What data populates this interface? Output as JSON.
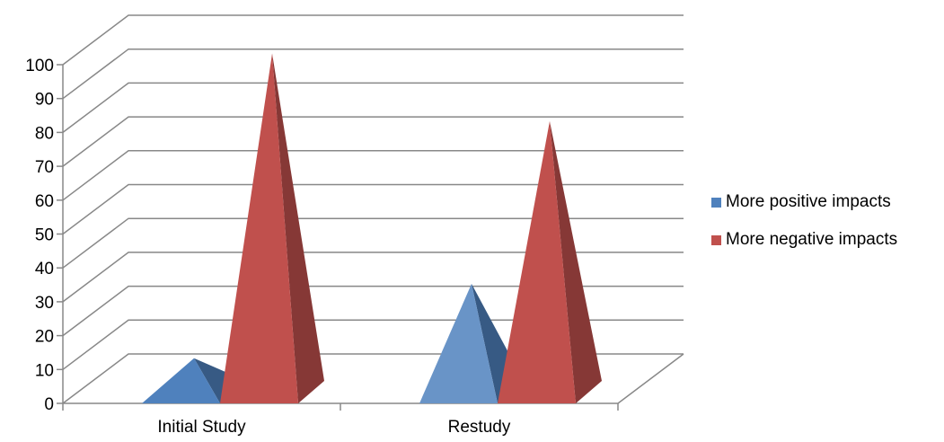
{
  "chart_data": {
    "type": "bar",
    "style": "3d-pyramid",
    "title": "",
    "xlabel": "",
    "ylabel": "",
    "categories": [
      "Initial Study",
      "Restudy"
    ],
    "series": [
      {
        "name": "More positive impacts",
        "values": [
          10,
          32
        ],
        "color": "#4f81bd"
      },
      {
        "name": "More negative impacts",
        "values": [
          100,
          80
        ],
        "color": "#c0504d"
      }
    ],
    "ylim": [
      0,
      100
    ],
    "yticks": [
      "0",
      "10",
      "20",
      "30",
      "40",
      "50",
      "60",
      "70",
      "80",
      "90",
      "100"
    ],
    "grid": true,
    "legend_position": "right"
  }
}
